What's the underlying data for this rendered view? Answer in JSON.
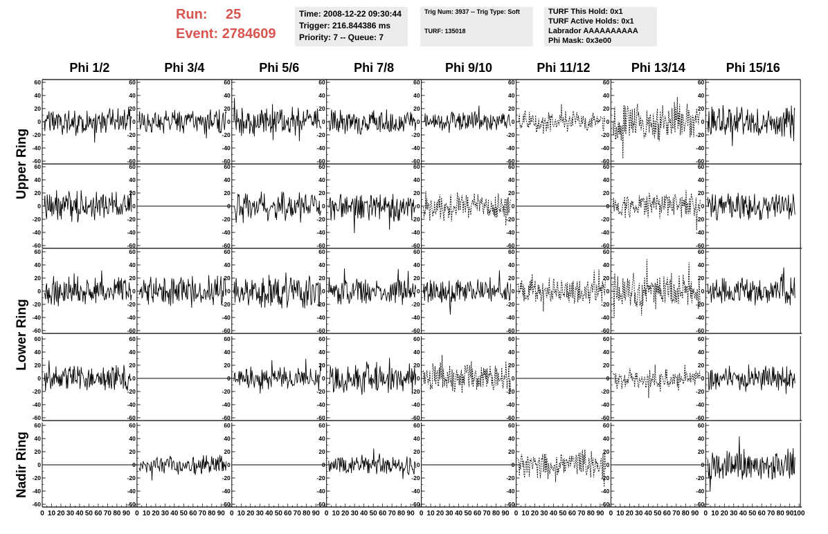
{
  "header": {
    "run_label": "Run:",
    "run_value": "25",
    "event_label": "Event:",
    "event_value": "2784609"
  },
  "info_box_1": {
    "time": "Time: 2008-12-22 09:30:44",
    "trigger": "Trigger: 216.844386 ms",
    "priority": "Priority: 7 -- Queue: 7"
  },
  "info_box_2": {
    "trig": "Trig Num: 3937 -- Trig Type: Soft",
    "turf": "TURF: 135018"
  },
  "info_box_3": {
    "hold": "TURF This Hold: 0x1",
    "active": "TURF Active Holds: 0x1",
    "labrador": "Labrador AAAAAAAAAA",
    "phimask": "Phi Mask: 0x3e00"
  },
  "chart_data": {
    "type": "line",
    "columns": [
      "Phi 1/2",
      "Phi 3/4",
      "Phi 5/6",
      "Phi 7/8",
      "Phi 9/10",
      "Phi 11/12",
      "Phi 13/14",
      "Phi 15/16"
    ],
    "row_groups": [
      {
        "label": "Upper Ring",
        "rows": [
          0,
          1
        ]
      },
      {
        "label": "Lower Ring",
        "rows": [
          2,
          3
        ]
      },
      {
        "label": "Nadir Ring",
        "rows": [
          4
        ]
      }
    ],
    "ylim": [
      -60,
      60
    ],
    "yticks": [
      -60,
      -40,
      -20,
      0,
      20,
      40,
      60
    ],
    "xlim": [
      0,
      100
    ],
    "xtick_labels": [
      "0",
      "10",
      "20",
      "30",
      "40",
      "50",
      "60",
      "70",
      "80",
      "90",
      "100"
    ],
    "panel_state": [
      [
        "solid",
        "solid",
        "solid",
        "solid",
        "solid",
        "dashed",
        "dashed",
        "solid"
      ],
      [
        "solid",
        "flat",
        "solid",
        "solid",
        "dashed",
        "flat",
        "dashed",
        "solid"
      ],
      [
        "solid",
        "solid",
        "solid",
        "solid",
        "solid",
        "dashed",
        "dashed",
        "solid"
      ],
      [
        "solid",
        "flat",
        "solid",
        "solid",
        "dashed",
        "flat",
        "dashed",
        "solid"
      ],
      [
        "flat",
        "solid",
        "flat",
        "solid",
        "flat",
        "dashed",
        "flat",
        "solid"
      ]
    ],
    "amplitude": [
      [
        15,
        15,
        18,
        15,
        12,
        12,
        22,
        18
      ],
      [
        18,
        0,
        16,
        18,
        16,
        0,
        14,
        16
      ],
      [
        16,
        18,
        20,
        15,
        15,
        15,
        20,
        16
      ],
      [
        15,
        0,
        13,
        18,
        18,
        0,
        12,
        15
      ],
      [
        0,
        11,
        0,
        11,
        0,
        16,
        0,
        18
      ]
    ]
  }
}
